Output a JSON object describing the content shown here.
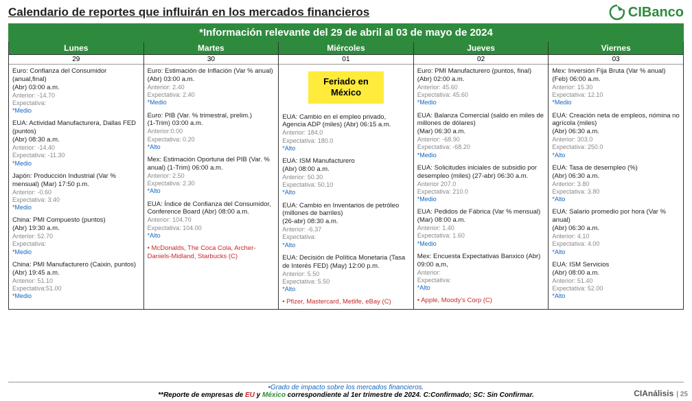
{
  "title": "Calendario de reportes que influirán en los mercados financieros",
  "logo_text": "CIBanco",
  "banner": "*Información relevante del 29 de abril al 03 de mayo de 2024",
  "days": [
    {
      "name": "Lunes",
      "date": "29"
    },
    {
      "name": "Martes",
      "date": "30"
    },
    {
      "name": "Miércoles",
      "date": "01"
    },
    {
      "name": "Jueves",
      "date": "02"
    },
    {
      "name": "Viernes",
      "date": "03"
    }
  ],
  "holiday": "Feriado en México",
  "col0": [
    {
      "t": "Euro: Confianza del Consumidor (anual,final)",
      "s": "(Abr) 03:00 a.m.",
      "a": "Anterior: -14.70",
      "e": "Expectativa:",
      "i": "*Medio"
    },
    {
      "t": "EUA: Actividad Manufacturera, Dallas FED (puntos)",
      "s": "(Abr) 08:30 a.m.",
      "a": "Anterior: -14.40",
      "e": "Expectativa: -11.30",
      "i": "*Medio"
    },
    {
      "t": "Japón: Producción Industrial (Var % mensual) (Mar) 17:50 p.m.",
      "s": "",
      "a": "Anterior: -0.60",
      "e": "Expectativa: 3.40",
      "i": "*Medio"
    },
    {
      "t": "China: PMI Compuesto (puntos)",
      "s": "(Abr)  19:30 a.m.",
      "a": "Anterior: 52.70",
      "e": "Expectativa:",
      "i": "*Medio"
    },
    {
      "t": "China: PMI Manufacturero (Caixin, puntos)",
      "s": "(Abr)  19:45 a.m.",
      "a": "Anterior: 51.10",
      "e": "Expectativa:51.00",
      "i": "*Medio"
    }
  ],
  "col1": [
    {
      "t": "Euro: Estimación de Inflación (Var % anual)",
      "s": "(Abr) 03:00 a.m.",
      "a": "Anterior: 2.40",
      "e": "Expectativa: 2.40",
      "i": "*Medio"
    },
    {
      "t": "Euro: PIB (Var. % trimestral, prelim.)",
      "s": "(1-Trim) 03:00 a.m.",
      "a": "Anterior:0.00",
      "e": "Expectativa: 0.20",
      "i": "*Alto"
    },
    {
      "t": "Mex: Estimación Oportuna del PIB (Var. % anual) (1-Trim) 06:00 a.m.",
      "s": "",
      "a": "Anterior: 2.50",
      "e": "Expectativa: 2.30",
      "i": "*Alto"
    },
    {
      "t": "EUA: Índice de Confianza del Consumidor, Conference Board (Abr) 08:00 a.m.",
      "s": "",
      "a": "Anterior: 104.70",
      "e": "Expectativa: 104.00",
      "i": "*Alto"
    }
  ],
  "col1_earn": "McDonalds, The Coca Cola, Archer-Daniels-Midland, Starbucks (C)",
  "col2": [
    {
      "t": "EUA: Cambio en el empleo privado, Agencia ADP (miles) (Abr) 06:15 a.m.",
      "s": "",
      "a": "Anterior: 184.0",
      "e": "Expectativa: 180.0",
      "i": "*Alto"
    },
    {
      "t": "EUA: ISM Manufacturero",
      "s": "(Abr) 08:00 a.m.",
      "a": "Anterior: 50.30",
      "e": "Expectativa: 50.10",
      "i": "*Alto"
    },
    {
      "t": "EUA: Cambio en Inventarios de petróleo (millones de barriles)",
      "s": "(26-abr) 08:30 a.m.",
      "a": "Anterior: -6.37",
      "e": "Expectativa:",
      "i": "*Alto"
    },
    {
      "t": "EUA: Decisión de Política Monetaria (Tasa de Interés FED) (May) 12:00 p.m.",
      "s": "",
      "a": "Anterior: 5.50",
      "e": "Expectativa: 5.50",
      "i": "*Alto"
    }
  ],
  "col2_earn": "Pfizer, Mastercard, Metlife, eBay (C)",
  "col3": [
    {
      "t": "Euro: PMI Manufacturero (puntos, final) (Abr) 02:00 a.m.",
      "s": "",
      "a": "Anterior: 45.60",
      "e": "Expectativa: 45.60",
      "i": "*Medio"
    },
    {
      "t": "EUA: Balanza Comercial (saldo en miles de millones de dólares)",
      "s": "(Mar) 06:30 a.m.",
      "a": "Anterior: -68.90",
      "e": "Expectativa: -68.20",
      "i": "*Medio"
    },
    {
      "t": "EUA: Solicitudes iniciales de subsidio por desempleo (miles) (27-abr) 06:30 a.m.",
      "s": "",
      "a": "Anterior 207.0",
      "e": "Expectativa: 210.0",
      "i": "*Medio"
    },
    {
      "t": "EUA: Pedidos de Fábrica (Var % mensual) (Mar) 08:00 a.m.",
      "s": "",
      "a": "Anterior: 1.40",
      "e": "Expectativa: 1.60",
      "i": "*Medio"
    },
    {
      "t": "Mex: Encuesta Expectativas Banxico (Abr) 09:00 a,m,",
      "s": "",
      "a": "Anterior:",
      "e": "Expectativa:",
      "i": "*Alto"
    }
  ],
  "col3_earn": "Apple, Moody's Corp (C)",
  "col4": [
    {
      "t": "Mex: Inversión Fija Bruta (Var % anual) (Feb) 06:00 a.m.",
      "s": "",
      "a": "Anterior: 15.30",
      "e": "Expectativa: 12.10",
      "i": "*Medio"
    },
    {
      "t": "EUA: Creación neta de empleos, nómina no agrícola (miles)",
      "s": "(Abr) 06:30 a.m.",
      "a": "Anterior: 303.0",
      "e": "Expectativa: 250.0",
      "i": "*Alto"
    },
    {
      "t": "EUA: Tasa de desempleo (%)",
      "s": "(Abr) 06:30 a.m.",
      "a": "Anterior: 3.80",
      "e": "Expectativa: 3.80",
      "i": "*Alto"
    },
    {
      "t": "EUA: Salario promedio por hora (Var % anual)",
      "s": "(Abr) 06:30 a.m.",
      "a": "Anterior: 4.10",
      "e": "Expectativa: 4.00",
      "i": "*Alto"
    },
    {
      "t": "EUA: ISM Servicios",
      "s": "(Abr) 08:00 a.m.",
      "a": "Anterior: 51.40",
      "e": "Expectativa: 52.00",
      "i": "*Alto"
    }
  ],
  "footer1": "•Grado de impacto sobre los mercados financieros.",
  "footer2_pre": "**Reporte de empresas de ",
  "footer2_eu": "EU",
  "footer2_mid": " y ",
  "footer2_mx": "México",
  "footer2_post": " correspondiente al 1er trimestre de 2024. C:Confirmado; SC: Sin Confirmar.",
  "footer_right": "CIAnálisis",
  "page_num": "| 25",
  "colors": {
    "green": "#2e8b3d",
    "blue": "#1565c0",
    "red": "#c62828",
    "yellow": "#ffeb3b",
    "grey": "#888888"
  }
}
